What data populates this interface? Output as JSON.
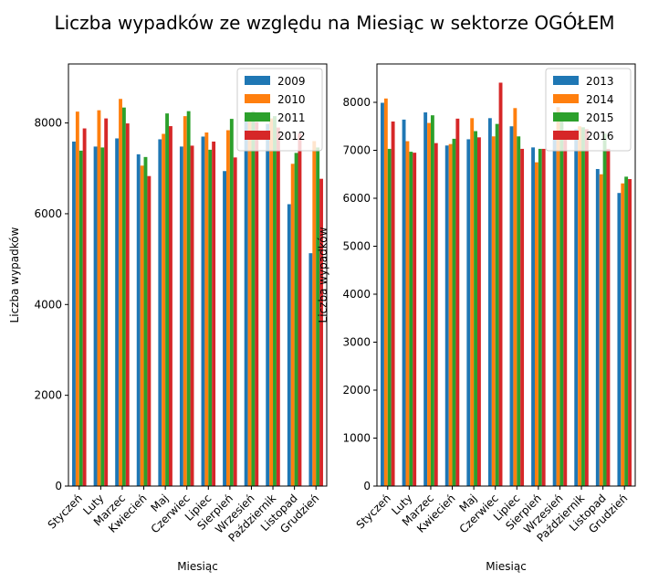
{
  "figure": {
    "title": "Liczba wypadków ze względu na Miesiąc w sektorze OGÓŁEM"
  },
  "colors": {
    "series": [
      "#1f77b4",
      "#ff7f0e",
      "#2ca02c",
      "#d62728"
    ]
  },
  "chart_data": [
    {
      "type": "bar",
      "title": "",
      "xlabel": "Miesiąc",
      "ylabel": "Liczba wypadków",
      "ylim": [
        0,
        9300
      ],
      "yticks": [
        0,
        2000,
        4000,
        6000,
        8000
      ],
      "legend_position": "top-right",
      "categories": [
        "Styczeń",
        "Luty",
        "Marzec",
        "Kwiecień",
        "Maj",
        "Czerwiec",
        "Lipiec",
        "Sierpień",
        "Wrzesień",
        "Październik",
        "Listopad",
        "Grudzień"
      ],
      "series": [
        {
          "name": "2009",
          "values": [
            7590,
            7480,
            7660,
            7310,
            7640,
            7480,
            7700,
            6940,
            8100,
            7980,
            6210,
            5130
          ]
        },
        {
          "name": "2010",
          "values": [
            8250,
            8280,
            8530,
            7060,
            7760,
            8150,
            7790,
            7840,
            8200,
            8100,
            7100,
            7600
          ]
        },
        {
          "name": "2011",
          "values": [
            7390,
            7460,
            8340,
            7250,
            8210,
            8260,
            7410,
            8090,
            8260,
            8150,
            7340,
            7460
          ]
        },
        {
          "name": "2012",
          "values": [
            7880,
            8100,
            7990,
            6830,
            7930,
            7500,
            7590,
            7240,
            8020,
            7900,
            7770,
            6770
          ]
        }
      ]
    },
    {
      "type": "bar",
      "title": "",
      "xlabel": "Miesiąc",
      "ylabel": "Liczba wypadków",
      "ylim": [
        0,
        8800
      ],
      "yticks": [
        0,
        1000,
        2000,
        3000,
        4000,
        5000,
        6000,
        7000,
        8000
      ],
      "legend_position": "top-right",
      "categories": [
        "Styczeń",
        "Luty",
        "Marzec",
        "Kwiecień",
        "Maj",
        "Czerwiec",
        "Lipiec",
        "Sierpień",
        "Wrzesień",
        "Październik",
        "Listopad",
        "Grudzień"
      ],
      "series": [
        {
          "name": "2013",
          "values": [
            7990,
            7640,
            7790,
            7100,
            7230,
            7670,
            7500,
            7060,
            7260,
            7440,
            6610,
            6110
          ]
        },
        {
          "name": "2014",
          "values": [
            8080,
            7190,
            7570,
            7130,
            7670,
            7290,
            7880,
            6750,
            7900,
            7500,
            6500,
            6310
          ]
        },
        {
          "name": "2015",
          "values": [
            7030,
            6970,
            7730,
            7240,
            7400,
            7550,
            7290,
            7030,
            7800,
            7480,
            7350,
            6450
          ]
        },
        {
          "name": "2016",
          "values": [
            7600,
            6950,
            7150,
            7660,
            7270,
            8410,
            7030,
            7030,
            7290,
            7440,
            7030,
            6400
          ]
        }
      ]
    }
  ]
}
